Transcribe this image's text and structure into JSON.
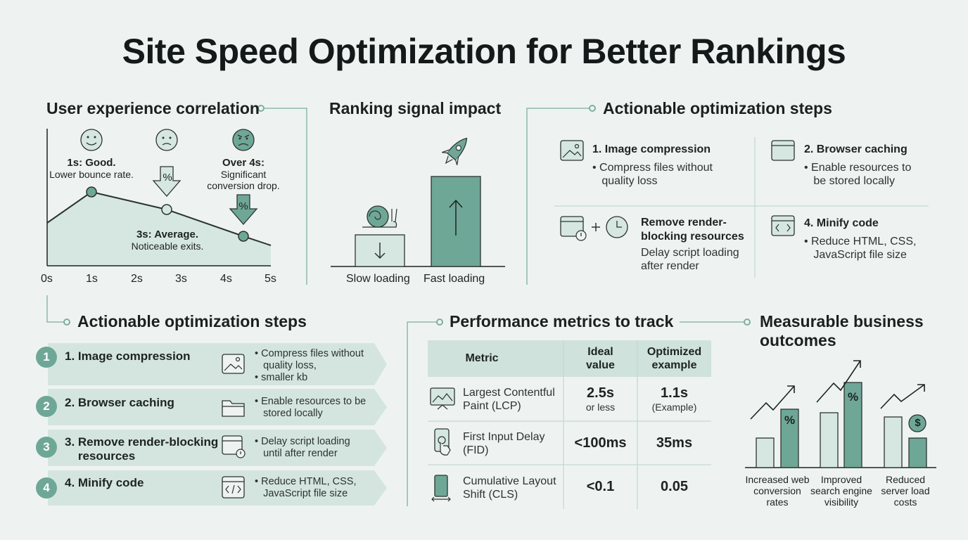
{
  "title": "Site Speed Optimization for Better Rankings",
  "ux": {
    "title": "User experience correlation",
    "good_head": "1s: Good.",
    "good_sub": "Lower bounce rate.",
    "avg_head": "3s: Average.",
    "avg_sub": "Noticeable exits.",
    "bad_head": "Over 4s:",
    "bad_sub1": "Significant",
    "bad_sub2": "conversion drop.",
    "percent": "%",
    "ticks": [
      "0s",
      "1s",
      "2s",
      "3s",
      "4s",
      "5s"
    ]
  },
  "ranking": {
    "title": "Ranking signal impact",
    "slow": "Slow loading",
    "fast": "Fast loading"
  },
  "steps_grid": {
    "title": "Actionable optimization steps",
    "items": [
      {
        "head": "1. Image compression",
        "desc1": "Compress files without",
        "desc2": "quality loss"
      },
      {
        "head": "2. Browser caching",
        "desc1": "Enable resources to",
        "desc2": "be stored locally"
      },
      {
        "head1": "Remove render-",
        "head2": "blocking resources",
        "desc1": "Delay script loading",
        "desc2": "after render"
      },
      {
        "head": "4. Minify code",
        "desc1": "Reduce HTML, CSS,",
        "desc2": "JavaScript file size"
      }
    ]
  },
  "steps_list": {
    "title": "Actionable optimization steps",
    "items": [
      {
        "num": "1",
        "label1": "1. Image compression",
        "label2": "",
        "d1": "Compress files without",
        "d2": "quality loss,",
        "d3": "smaller kb"
      },
      {
        "num": "2",
        "label1": "2. Browser caching",
        "label2": "",
        "d1": "Enable resources to be",
        "d2": "stored locally",
        "d3": ""
      },
      {
        "num": "3",
        "label1": "3. Remove render-blocking",
        "label2": "resources",
        "d1": "Delay script loading",
        "d2": "until after render",
        "d3": ""
      },
      {
        "num": "4",
        "label1": "4. Minify code",
        "label2": "",
        "d1": "Reduce HTML, CSS,",
        "d2": "JavaScript file size",
        "d3": ""
      }
    ]
  },
  "metrics": {
    "title": "Performance metrics to track",
    "h_metric": "Metric",
    "h_ideal1": "Ideal",
    "h_ideal2": "value",
    "h_opt1": "Optimized",
    "h_opt2": "example",
    "rows": [
      {
        "m1": "Largest Contentful",
        "m2": "Paint (LCP)",
        "ideal": "2.5s",
        "ideal_sub": "or less",
        "opt": "1.1s",
        "opt_sub": "(Example)"
      },
      {
        "m1": "First Input Delay",
        "m2": "(FID)",
        "ideal": "<100ms",
        "ideal_sub": "",
        "opt": "35ms",
        "opt_sub": ""
      },
      {
        "m1": "Cumulative Layout",
        "m2": "Shift (CLS)",
        "ideal": "<0.1",
        "ideal_sub": "",
        "opt": "0.05",
        "opt_sub": ""
      }
    ]
  },
  "outcomes": {
    "title1": "Measurable business",
    "title2": "outcomes",
    "items": [
      {
        "l1": "Increased web",
        "l2": "conversion",
        "l3": "rates"
      },
      {
        "l1": "Improved",
        "l2": "search engine",
        "l3": "visibility"
      },
      {
        "l1": "Reduced",
        "l2": "server load",
        "l3": "costs"
      }
    ],
    "percent": "%",
    "dollar": "$"
  },
  "colors": {
    "accent": "#6fa797",
    "accent_light": "#d4e5df",
    "background": "#eef3f1"
  }
}
